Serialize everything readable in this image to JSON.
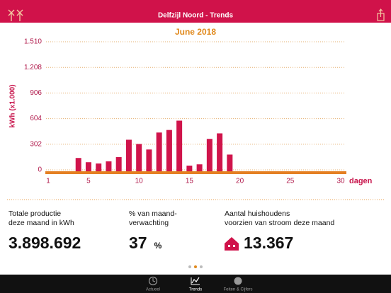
{
  "header": {
    "title": "Delfzijl Noord - Trends"
  },
  "chart_data": {
    "type": "bar",
    "title": "June 2018",
    "y_label": "kWh (x1.000)",
    "x_label": "dagen",
    "x": [
      4,
      5,
      6,
      7,
      8,
      9,
      10,
      11,
      12,
      13,
      14,
      15,
      16,
      17,
      18,
      19
    ],
    "values": [
      140,
      90,
      75,
      100,
      150,
      355,
      305,
      240,
      440,
      470,
      580,
      50,
      65,
      365,
      430,
      180
    ],
    "color": "#d0144b",
    "xlim": [
      1,
      30
    ],
    "xticks": [
      1,
      5,
      10,
      15,
      20,
      25,
      30
    ],
    "ylim": [
      0,
      1510
    ],
    "yticks": [
      0,
      302,
      604,
      906,
      {
        "value": 1208,
        "label": "1.208"
      },
      {
        "value": 1510,
        "label": "1.510"
      }
    ],
    "grid": true
  },
  "stats": [
    {
      "label": [
        "Totale productie",
        "deze maand in kWh"
      ],
      "value": "3.898.692"
    },
    {
      "label": [
        "% van maand-",
        "verwachting"
      ],
      "value": "37",
      "unit": "%"
    },
    {
      "label": [
        "Aantal huishoudens",
        "voorzien van stroom deze maand"
      ],
      "value": "13.367"
    }
  ],
  "tabs": [
    "Actueel",
    "Trends",
    "Feiten & Cijfers"
  ]
}
